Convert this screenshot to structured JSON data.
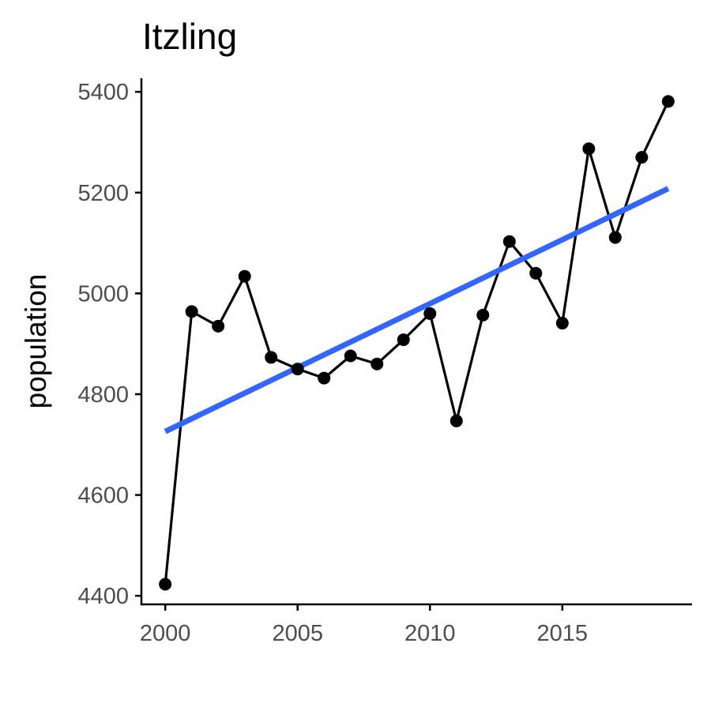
{
  "chart_data": {
    "type": "line",
    "title": "Itzling",
    "xlabel": "",
    "ylabel": "population",
    "x": [
      2000,
      2001,
      2002,
      2003,
      2004,
      2005,
      2006,
      2007,
      2008,
      2009,
      2010,
      2011,
      2012,
      2013,
      2014,
      2015,
      2016,
      2017,
      2018,
      2019
    ],
    "series": [
      {
        "values": [
          4423,
          4964,
          4935,
          5034,
          4873,
          4850,
          4832,
          4876,
          4860,
          4908,
          4960,
          4747,
          4957,
          5103,
          5040,
          4941,
          5287,
          5111,
          5270,
          5381
        ]
      }
    ],
    "trend": {
      "type": "linear",
      "x": [
        2000,
        2019
      ],
      "y": [
        4726,
        5208
      ]
    },
    "xlim": [
      1999.1,
      2019.9
    ],
    "ylim": [
      4383,
      5427
    ],
    "xticks": [
      2000,
      2005,
      2010,
      2015
    ],
    "yticks": [
      4400,
      4600,
      4800,
      5000,
      5200,
      5400
    ],
    "grid": false,
    "legend": "none",
    "colors": {
      "series": "#000000",
      "trend": "#3366ff",
      "tick_text": "#4d4d4d"
    }
  }
}
